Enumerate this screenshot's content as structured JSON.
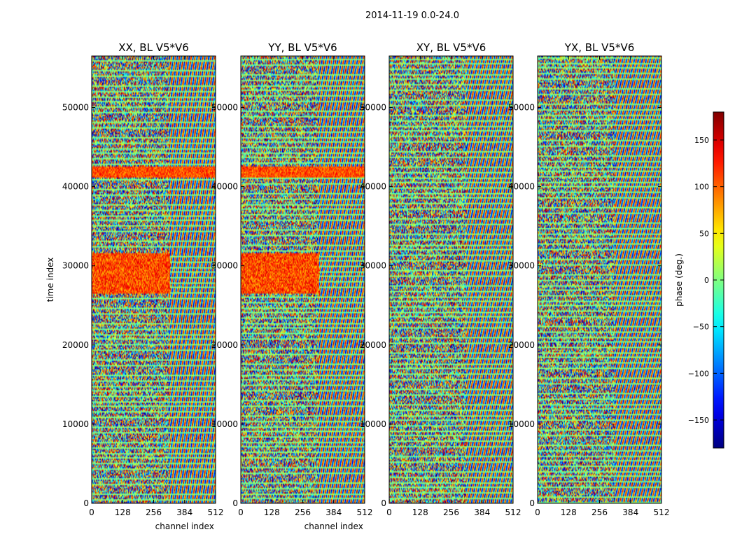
{
  "figure": {
    "suptitle": "2014-11-19 0.0-24.0"
  },
  "chart_data": [
    {
      "type": "heatmap",
      "title": "XX, BL V5*V6",
      "xlabel": "channel index",
      "ylabel": "time index",
      "xlim": [
        0,
        512
      ],
      "ylim": [
        0,
        56500
      ],
      "xticks": [
        0,
        128,
        256,
        384,
        512
      ],
      "yticks": [
        0,
        10000,
        20000,
        30000,
        40000,
        50000
      ],
      "value": "phase (deg.)"
    },
    {
      "type": "heatmap",
      "title": "YY, BL V5*V6",
      "xlabel": "channel index",
      "ylabel": "",
      "xlim": [
        0,
        512
      ],
      "ylim": [
        0,
        56500
      ],
      "xticks": [
        0,
        128,
        256,
        384,
        512
      ],
      "yticks": [
        0,
        10000,
        20000,
        30000,
        40000,
        50000
      ],
      "value": "phase (deg.)"
    },
    {
      "type": "heatmap",
      "title": "XY, BL V5*V6",
      "xlabel": "",
      "ylabel": "",
      "xlim": [
        0,
        512
      ],
      "ylim": [
        0,
        56500
      ],
      "xticks": [
        0,
        128,
        256,
        384,
        512
      ],
      "yticks": [
        0,
        10000,
        20000,
        30000,
        40000,
        50000
      ],
      "value": "phase (deg.)"
    },
    {
      "type": "heatmap",
      "title": "YX, BL V5*V6",
      "xlabel": "",
      "ylabel": "",
      "xlim": [
        0,
        512
      ],
      "ylim": [
        0,
        56500
      ],
      "xticks": [
        0,
        128,
        256,
        384,
        512
      ],
      "yticks": [
        0,
        10000,
        20000,
        30000,
        40000,
        50000
      ],
      "value": "phase (deg.)"
    }
  ],
  "colorbar": {
    "label": "phase (deg.)",
    "range": [
      -180,
      180
    ],
    "ticks": [
      150,
      100,
      50,
      0,
      -50,
      -100,
      -150
    ],
    "tick_labels": [
      "150",
      "100",
      "50",
      "0",
      "−50",
      "−100",
      "−150"
    ],
    "colormap": "jet"
  }
}
